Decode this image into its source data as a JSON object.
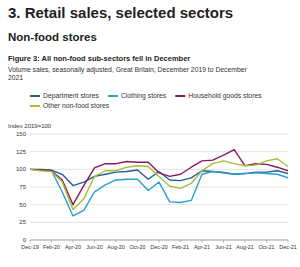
{
  "chart_data": {
    "type": "line",
    "title": "3. Retail sales, selected sectors",
    "subtitle": "Non-food stores",
    "figure_title": "Figure 3: All non-food sub-sectors fell in December",
    "description": "Volume sales, seasonally adjusted, Great Britain, December 2019 to December 2021",
    "y_label": "Index 2019=100",
    "categories": [
      "Dec-19",
      null,
      "Feb-20",
      null,
      "Apr-20",
      null,
      "Jun-20",
      null,
      "Aug-20",
      null,
      "Oct-20",
      null,
      "Dec-20",
      null,
      "Feb-21",
      null,
      "Apr-21",
      null,
      "Jun-21",
      null,
      "Aug-21",
      null,
      "Oct-21",
      null,
      "Dec-21"
    ],
    "series": [
      {
        "name": "Department stores",
        "color": "#206095",
        "values": [
          100,
          100,
          99,
          93,
          77,
          82,
          90,
          93,
          96,
          97,
          99,
          86,
          97,
          85,
          84,
          88,
          98,
          97,
          95,
          93,
          94,
          96,
          96,
          98,
          94
        ]
      },
      {
        "name": "Clothing stores",
        "color": "#27a0cc",
        "values": [
          100,
          99,
          98,
          68,
          34,
          42,
          68,
          78,
          85,
          86,
          86,
          70,
          82,
          54,
          53,
          56,
          93,
          97,
          96,
          93,
          94,
          95,
          94,
          93,
          88
        ]
      },
      {
        "name": "Household goods stores",
        "color": "#871a5b",
        "values": [
          100,
          99,
          98,
          85,
          50,
          77,
          102,
          108,
          108,
          111,
          110,
          110,
          95,
          90,
          93,
          103,
          112,
          113,
          120,
          128,
          105,
          108,
          107,
          103,
          98
        ]
      },
      {
        "name": "Other non-food stores",
        "color": "#a8bd3a",
        "values": [
          100,
          98,
          97,
          82,
          43,
          58,
          90,
          98,
          98,
          103,
          105,
          104,
          90,
          76,
          73,
          80,
          98,
          108,
          112,
          108,
          105,
          106,
          112,
          115,
          104
        ]
      }
    ],
    "ylim": [
      0,
      150
    ],
    "yticks": [
      0,
      25,
      50,
      75,
      100,
      125,
      150
    ],
    "grid": true
  }
}
